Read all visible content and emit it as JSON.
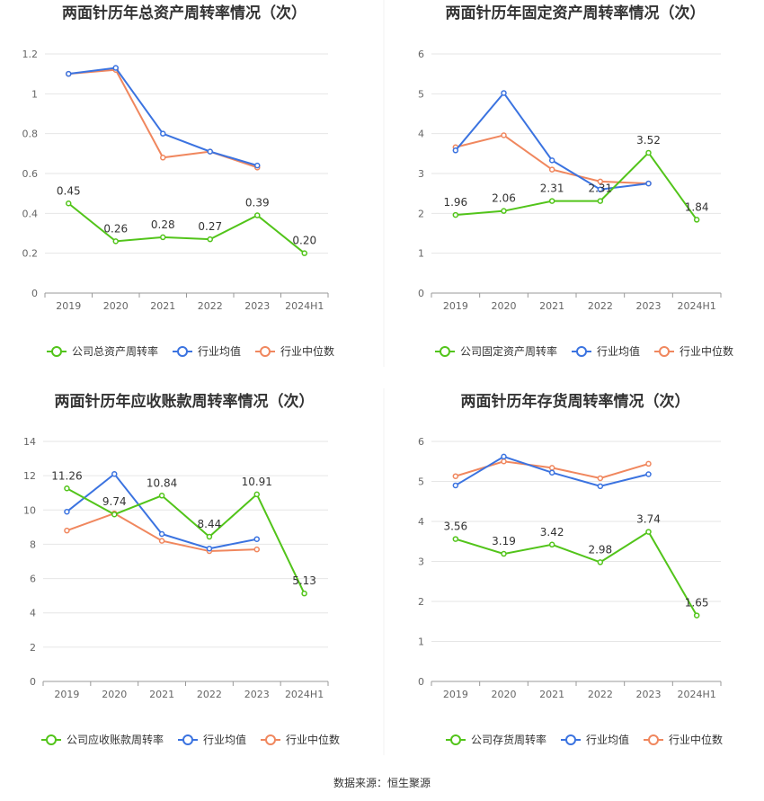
{
  "source": "数据来源：恒生聚源",
  "colors": {
    "company": "#52c41a",
    "avg": "#3b73e0",
    "median": "#f0875e",
    "grid": "#e6e6e6",
    "axis": "#999999"
  },
  "chart_data": [
    {
      "type": "line",
      "title": "两面针历年总资产周转率情况（次）",
      "categories": [
        "2019",
        "2020",
        "2021",
        "2022",
        "2023",
        "2024H1"
      ],
      "ylim": [
        0,
        1.2
      ],
      "yticks": [
        "0",
        "0.2",
        "0.4",
        "0.6",
        "0.8",
        "1",
        "1.2"
      ],
      "series": [
        {
          "name": "公司总资产周转率",
          "color": "company",
          "labels": true,
          "values": [
            0.45,
            0.26,
            0.28,
            0.27,
            0.39,
            0.2
          ],
          "label_text": [
            "0.45",
            "0.26",
            "0.28",
            "0.27",
            "0.39",
            "0.20"
          ]
        },
        {
          "name": "行业均值",
          "color": "avg",
          "values": [
            1.1,
            1.13,
            0.8,
            0.71,
            0.64,
            null
          ]
        },
        {
          "name": "行业中位数",
          "color": "median",
          "values": [
            1.1,
            1.12,
            0.68,
            0.71,
            0.63,
            null
          ]
        }
      ]
    },
    {
      "type": "line",
      "title": "两面针历年固定资产周转率情况（次）",
      "categories": [
        "2019",
        "2020",
        "2021",
        "2022",
        "2023",
        "2024H1"
      ],
      "ylim": [
        0,
        6
      ],
      "yticks": [
        "0",
        "1",
        "2",
        "3",
        "4",
        "5",
        "6"
      ],
      "series": [
        {
          "name": "公司固定资产周转率",
          "color": "company",
          "labels": true,
          "values": [
            1.96,
            2.06,
            2.31,
            2.31,
            3.52,
            1.84
          ],
          "label_text": [
            "1.96",
            "2.06",
            "2.31",
            "2.31",
            "3.52",
            "1.84"
          ]
        },
        {
          "name": "行业均值",
          "color": "avg",
          "values": [
            3.58,
            5.02,
            3.33,
            2.6,
            2.75,
            null
          ]
        },
        {
          "name": "行业中位数",
          "color": "median",
          "values": [
            3.66,
            3.96,
            3.1,
            2.8,
            2.75,
            null
          ]
        }
      ]
    },
    {
      "type": "line",
      "title": "两面针历年应收账款周转率情况（次）",
      "categories": [
        "2019",
        "2020",
        "2021",
        "2022",
        "2023",
        "2024H1"
      ],
      "ylim": [
        0,
        14
      ],
      "yticks": [
        "0",
        "2",
        "4",
        "6",
        "8",
        "10",
        "12",
        "14"
      ],
      "series": [
        {
          "name": "公司应收账款周转率",
          "color": "company",
          "labels": true,
          "values": [
            11.26,
            9.74,
            10.84,
            8.44,
            10.91,
            5.13
          ],
          "label_text": [
            "11.26",
            "9.74",
            "10.84",
            "8.44",
            "10.91",
            "5.13"
          ]
        },
        {
          "name": "行业均值",
          "color": "avg",
          "values": [
            9.9,
            12.1,
            8.6,
            7.75,
            8.3,
            null
          ]
        },
        {
          "name": "行业中位数",
          "color": "median",
          "values": [
            8.8,
            9.8,
            8.2,
            7.6,
            7.7,
            null
          ]
        }
      ]
    },
    {
      "type": "line",
      "title": "两面针历年存货周转率情况（次）",
      "categories": [
        "2019",
        "2020",
        "2021",
        "2022",
        "2023",
        "2024H1"
      ],
      "ylim": [
        0,
        6
      ],
      "yticks": [
        "0",
        "1",
        "2",
        "3",
        "4",
        "5",
        "6"
      ],
      "series": [
        {
          "name": "公司存货周转率",
          "color": "company",
          "labels": true,
          "values": [
            3.56,
            3.19,
            3.42,
            2.98,
            3.74,
            1.65
          ],
          "label_text": [
            "3.56",
            "3.19",
            "3.42",
            "2.98",
            "3.74",
            "1.65"
          ]
        },
        {
          "name": "行业均值",
          "color": "avg",
          "values": [
            4.9,
            5.62,
            5.22,
            4.88,
            5.18,
            null
          ]
        },
        {
          "name": "行业中位数",
          "color": "median",
          "values": [
            5.13,
            5.5,
            5.34,
            5.08,
            5.44,
            null
          ]
        }
      ]
    }
  ]
}
